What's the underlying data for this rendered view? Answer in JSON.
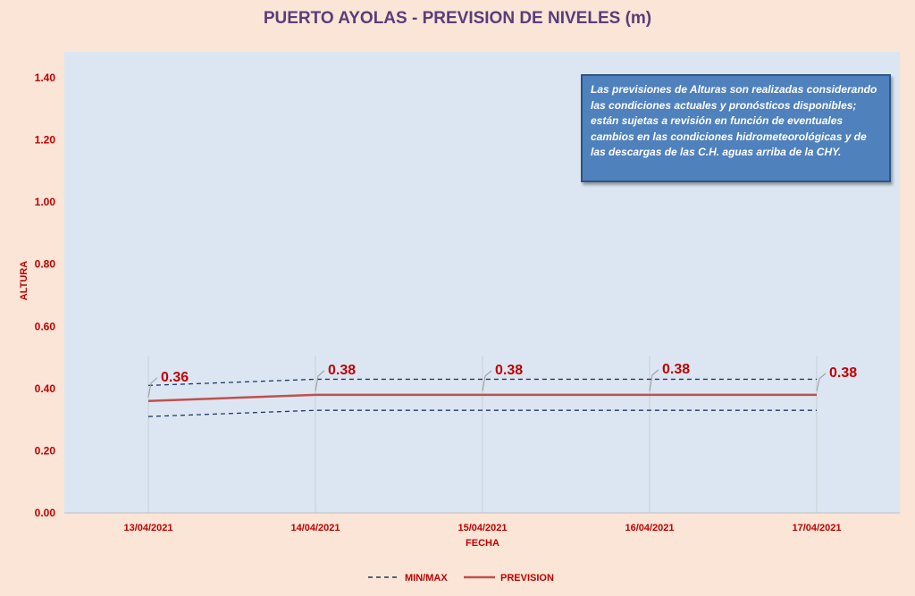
{
  "chart_data": {
    "type": "line",
    "title": "PUERTO AYOLAS - PREVISION DE NIVELES (m)",
    "xlabel": "FECHA",
    "ylabel": "ALTURA",
    "categories": [
      "13/04/2021",
      "14/04/2021",
      "15/04/2021",
      "16/04/2021",
      "17/04/2021"
    ],
    "ylim": [
      0,
      1.4
    ],
    "yticks": [
      "0.00",
      "0.20",
      "0.40",
      "0.60",
      "0.80",
      "1.00",
      "1.20",
      "1.40"
    ],
    "series": [
      {
        "name": "PREVISION",
        "values": [
          0.36,
          0.38,
          0.38,
          0.38,
          0.38
        ],
        "labels": [
          "0.36",
          "0.38",
          "0.38",
          "0.38",
          "0.38"
        ],
        "color": "#c0504d",
        "style": "solid"
      },
      {
        "name": "MIN/MAX",
        "upper": [
          0.41,
          0.43,
          0.43,
          0.43,
          0.43
        ],
        "lower": [
          0.31,
          0.33,
          0.33,
          0.33,
          0.33
        ],
        "color": "#1f3864",
        "style": "dashed"
      }
    ],
    "grid": "vertical",
    "legend_position": "bottom",
    "note": "Las previsiones de Alturas son realizadas considerando las condiciones actuales y pronósticos disponibles;  están sujetas a revisión en función de eventuales cambios en las condiciones hidrometeorológicas y de las descargas de las C.H. aguas arriba de la CHY."
  },
  "colors": {
    "plot_background": "#dce6f2",
    "page_background": "#fbe5d6",
    "text": "#c00000",
    "title": "#5a3d7a",
    "note_background": "#4f81bd"
  }
}
